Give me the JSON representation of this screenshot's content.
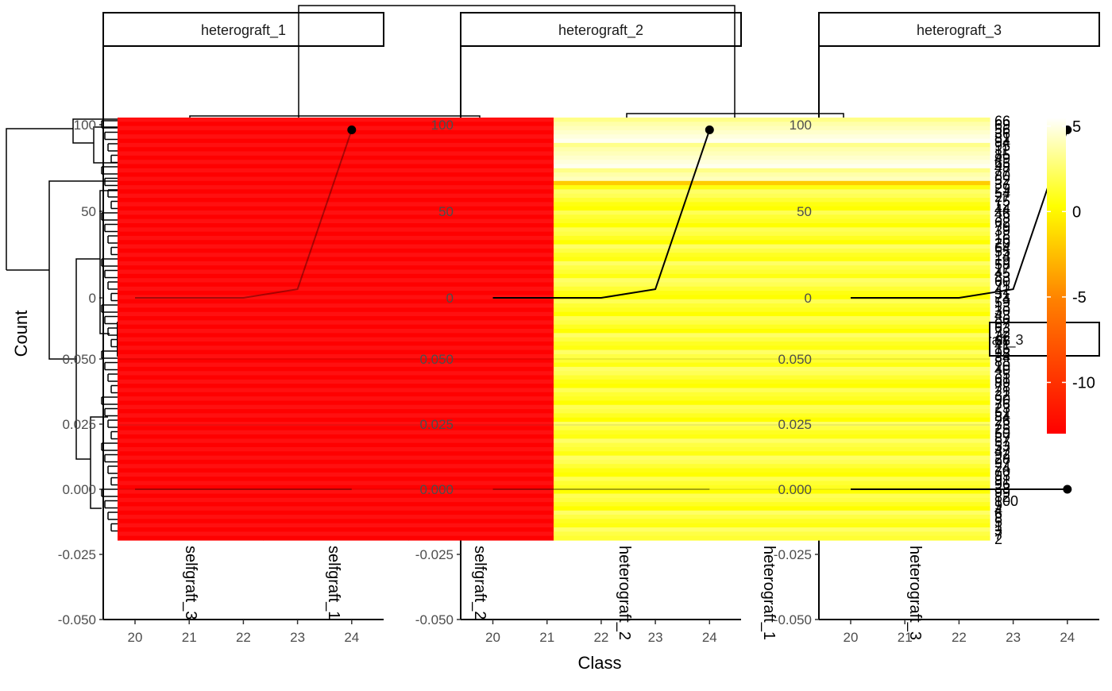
{
  "chart_data": {
    "type": "heatmap",
    "facets": [
      "heterograft_1",
      "heterograft_2",
      "heterograft_3"
    ],
    "inner_facets": [
      "selfgraft_1",
      "selfgraft_2",
      "selfgraft_3"
    ],
    "xlabel": "Class",
    "ylabel": "Count",
    "x_ticks": [
      20,
      21,
      22,
      23,
      24
    ],
    "upper_y_ticks": [
      "100",
      "50",
      "0"
    ],
    "lower_y_ticks": [
      "0.050",
      "0.025",
      "0.000",
      "-0.025",
      "-0.050"
    ],
    "heatmap_columns": [
      "selfgraft_3",
      "selfgraft_1",
      "selfgraft_2",
      "heterograft_2",
      "heterograft_1",
      "heterograft_3"
    ],
    "legend": {
      "ticks": [
        5,
        0,
        -5,
        -10
      ],
      "range": [
        -13,
        5.5
      ],
      "colors": [
        "#ff0000",
        "#ff8000",
        "#ffff00",
        "#ffffff"
      ]
    },
    "row_labels": [
      "66",
      "69",
      "56",
      "36",
      "81",
      "94",
      "95",
      "11",
      "85",
      "49",
      "65",
      "48",
      "77",
      "80",
      "52",
      "37",
      "29",
      "54",
      "27",
      "75",
      "12",
      "44",
      "46",
      "38",
      "62",
      "79",
      "39",
      "18",
      "16",
      "20",
      "64",
      "55",
      "14",
      "19",
      "58",
      "17",
      "45",
      "83",
      "60",
      "71",
      "42",
      "31",
      "74",
      "59",
      "13",
      "30",
      "43",
      "86",
      "67",
      "63",
      "72",
      "22",
      "68",
      "41",
      "15",
      "98",
      "34",
      "88",
      "10",
      "40",
      "35",
      "61",
      "89",
      "78",
      "21",
      "32",
      "90",
      "76",
      "23",
      "51",
      "84",
      "26",
      "73",
      "25",
      "50",
      "87",
      "57",
      "53",
      "47",
      "92",
      "28",
      "97",
      "24",
      "70",
      "93",
      "91",
      "96",
      "33",
      "99",
      "82",
      "100",
      "9",
      "4",
      "6",
      "8",
      "5",
      "1",
      "3",
      "7",
      "2"
    ],
    "line_series": {
      "upper": [
        [
          20,
          0
        ],
        [
          21,
          0
        ],
        [
          22,
          0
        ],
        [
          23,
          5
        ],
        [
          24,
          97
        ]
      ],
      "lower": [
        [
          20,
          0
        ],
        [
          21,
          0
        ],
        [
          22,
          0
        ],
        [
          23,
          0
        ],
        [
          24,
          0
        ]
      ]
    }
  }
}
